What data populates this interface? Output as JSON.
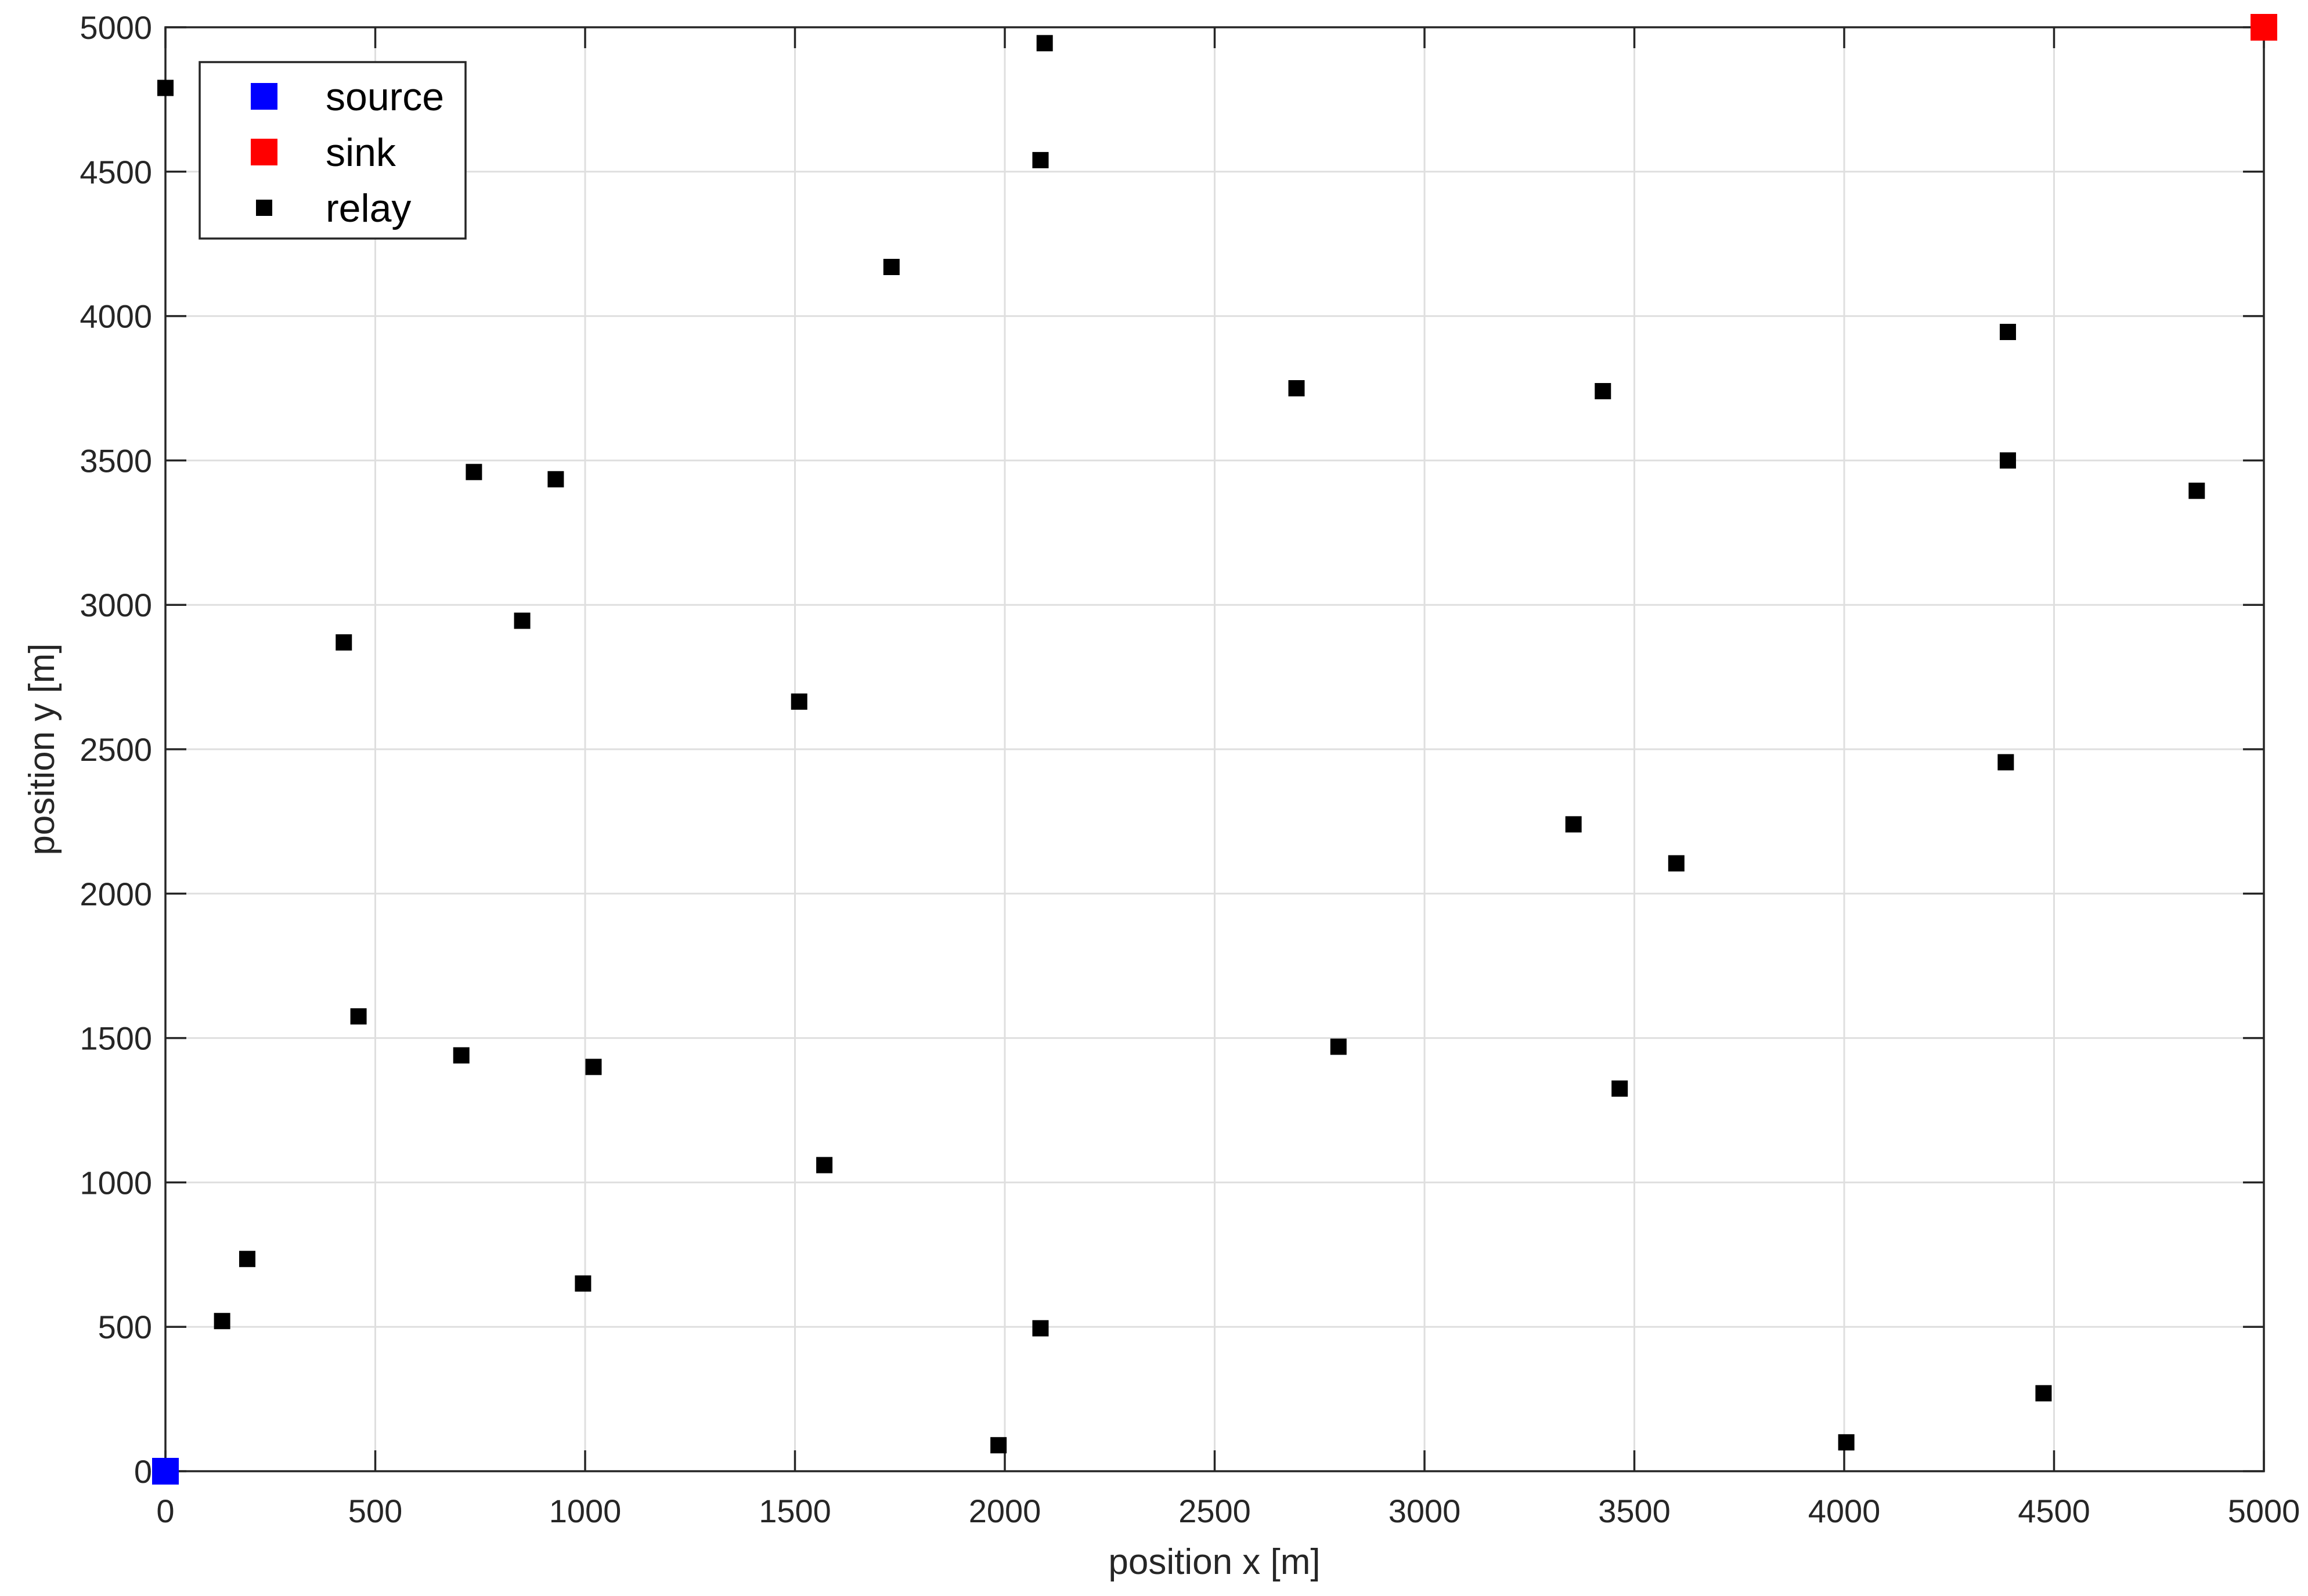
{
  "chart_data": {
    "type": "scatter",
    "title": "",
    "xlabel": "position x [m]",
    "ylabel": "position y [m]",
    "xlim": [
      0,
      5000
    ],
    "ylim": [
      0,
      5000
    ],
    "xticks": [
      0,
      500,
      1000,
      1500,
      2000,
      2500,
      3000,
      3500,
      4000,
      4500,
      5000
    ],
    "yticks": [
      0,
      500,
      1000,
      1500,
      2000,
      2500,
      3000,
      3500,
      4000,
      4500,
      5000
    ],
    "grid": true,
    "legend_position": "top-left",
    "series": [
      {
        "name": "source",
        "color": "#0000ff",
        "marker": "square-large",
        "points": [
          [
            0,
            0
          ]
        ]
      },
      {
        "name": "sink",
        "color": "#ff0000",
        "marker": "square-large",
        "points": [
          [
            5000,
            5000
          ]
        ]
      },
      {
        "name": "relay",
        "color": "#000000",
        "marker": "square-small",
        "points": [
          [
            0,
            4790
          ],
          [
            2095,
            4945
          ],
          [
            2085,
            4540
          ],
          [
            1730,
            4170
          ],
          [
            4390,
            3945
          ],
          [
            2695,
            3750
          ],
          [
            3425,
            3740
          ],
          [
            4390,
            3500
          ],
          [
            4840,
            3395
          ],
          [
            735,
            3460
          ],
          [
            930,
            3435
          ],
          [
            850,
            2945
          ],
          [
            425,
            2870
          ],
          [
            1510,
            2665
          ],
          [
            4385,
            2455
          ],
          [
            3355,
            2240
          ],
          [
            3600,
            2105
          ],
          [
            460,
            1575
          ],
          [
            705,
            1440
          ],
          [
            1020,
            1400
          ],
          [
            2795,
            1470
          ],
          [
            3465,
            1325
          ],
          [
            1570,
            1060
          ],
          [
            195,
            735
          ],
          [
            995,
            650
          ],
          [
            135,
            520
          ],
          [
            2085,
            495
          ],
          [
            4475,
            270
          ],
          [
            1985,
            90
          ],
          [
            4005,
            100
          ]
        ]
      }
    ]
  }
}
